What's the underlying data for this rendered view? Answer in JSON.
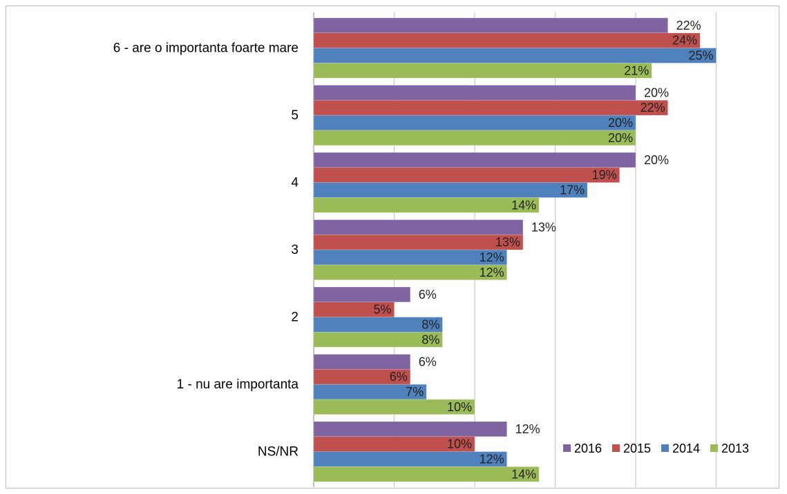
{
  "chart_data": {
    "type": "bar",
    "orientation": "horizontal",
    "categories": [
      "6 - are o importanta foarte mare",
      "5",
      "4",
      "3",
      "2",
      "1 - nu are importanta",
      "NS/NR"
    ],
    "series": [
      {
        "name": "2016",
        "color": "#8064a2",
        "values": [
          22,
          20,
          20,
          13,
          6,
          6,
          12
        ],
        "labels": [
          "22%",
          "20%",
          "20%",
          "13%",
          "6%",
          "6%",
          "12%"
        ]
      },
      {
        "name": "2015",
        "color": "#c0504d",
        "values": [
          24,
          22,
          19,
          13,
          5,
          6,
          10
        ],
        "labels": [
          "24%",
          "22%",
          "19%",
          "13%",
          "5%",
          "6%",
          "10%"
        ]
      },
      {
        "name": "2014",
        "color": "#4f81bd",
        "values": [
          25,
          20,
          17,
          12,
          8,
          7,
          12
        ],
        "labels": [
          "25%",
          "20%",
          "17%",
          "12%",
          "8%",
          "7%",
          "12%"
        ]
      },
      {
        "name": "2013",
        "color": "#9bbb59",
        "values": [
          21,
          20,
          14,
          12,
          8,
          10,
          14
        ],
        "labels": [
          "21%",
          "20%",
          "14%",
          "12%",
          "8%",
          "10%",
          "14%"
        ]
      }
    ],
    "xlim": [
      0,
      25
    ],
    "grid": "vertical",
    "legend": "bottom-right",
    "title": "",
    "xlabel": "",
    "ylabel": ""
  }
}
